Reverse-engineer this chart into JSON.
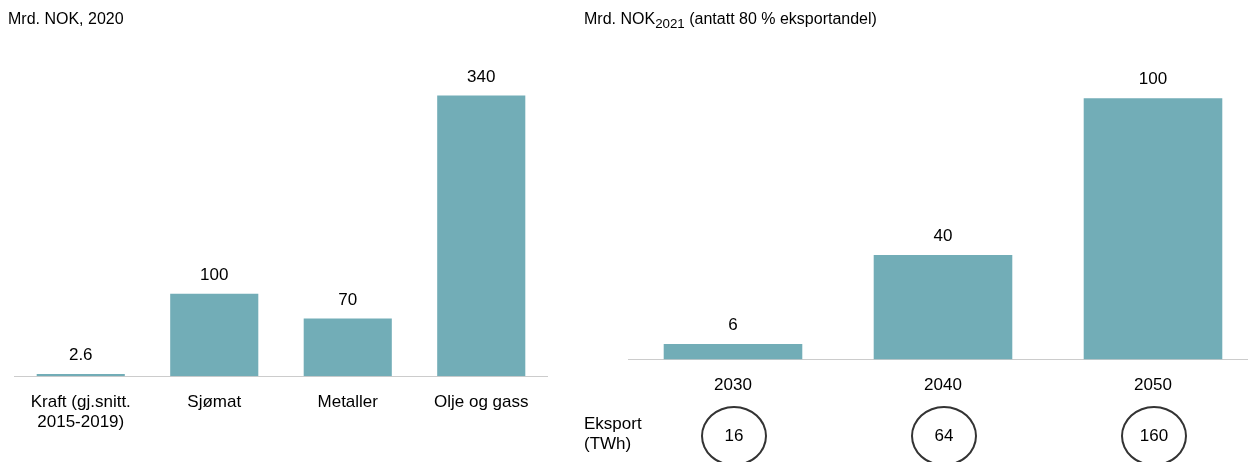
{
  "chart_data": [
    {
      "type": "bar",
      "title": "Mrd. NOK, 2020",
      "categories": [
        "Kraft (gj.snitt. 2015-2019)",
        "Sjømat",
        "Metaller",
        "Olje og gass"
      ],
      "values": [
        2.6,
        100,
        70,
        340
      ],
      "color": "#72adb7",
      "data_labels": true,
      "tick_labels": "x",
      "grid": false
    },
    {
      "type": "bar",
      "title": "Mrd. NOK$_{2021}$ (antatt 80 % eksportandel)",
      "categories": [
        "2030",
        "2040",
        "2050"
      ],
      "values": [
        6,
        40,
        100
      ],
      "color": "#72adb7",
      "data_labels": true,
      "tick_labels": "x",
      "grid": false
    },
    {
      "type": "other",
      "title": "Eksport (TWh)",
      "categories": [
        null,
        null,
        null
      ],
      "values": [
        16,
        64,
        160
      ],
      "data_labels": true
    }
  ]
}
